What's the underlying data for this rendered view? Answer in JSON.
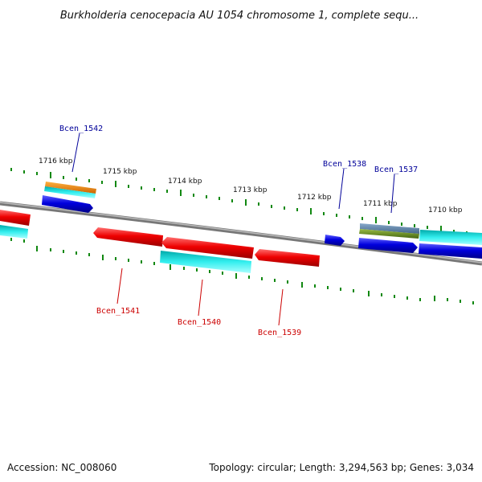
{
  "title": "Burkholderia cenocepacia AU 1054 chromosome 1, complete sequ...",
  "footer": {
    "accession": "Accession: NC_008060",
    "summary": "Topology: circular; Length: 3,294,563 bp; Genes: 3,034"
  },
  "ticks": {
    "t1716": "1716 kbp",
    "t1715": "1715 kbp",
    "t1714": "1714 kbp",
    "t1713": "1713 kbp",
    "t1712": "1712 kbp",
    "t1711": "1711 kbp",
    "t1710": "1710 kbp"
  },
  "genes": {
    "g1542": "Bcen_1542",
    "g1541": "Bcen_1541",
    "g1540": "Bcen_1540",
    "g1539": "Bcen_1539",
    "g1538": "Bcen_1538",
    "g1537": "Bcen_1537"
  },
  "colors": {
    "forward_cds": "#0000dd",
    "reverse_cds": "#ee0000",
    "cyan_feature": "#00cccc",
    "orange_feature": "#ee8800",
    "green_feature": "#669922",
    "backbone": "#888888",
    "ruler_green": "#118811",
    "forward_label": "#000099",
    "reverse_label": "#cc0000"
  }
}
